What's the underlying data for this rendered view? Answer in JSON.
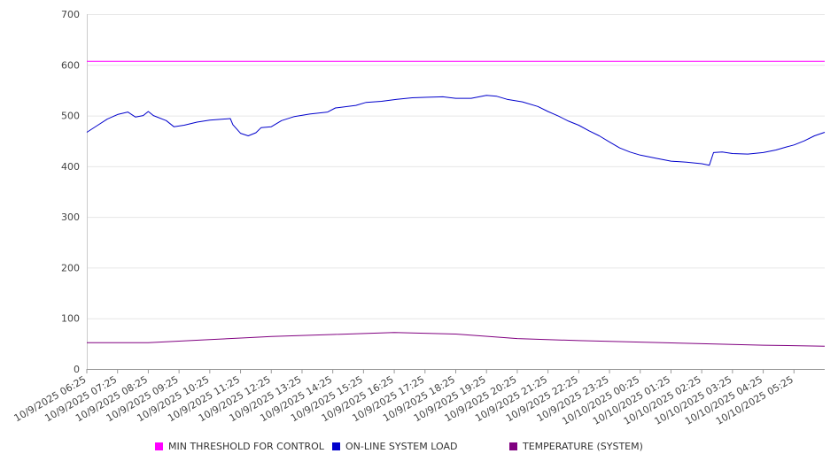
{
  "chart_data": {
    "type": "line",
    "ylim": [
      0,
      700
    ],
    "yticks": [
      "0",
      "100",
      "200",
      "300",
      "400",
      "500",
      "600",
      "700"
    ],
    "xticks": [
      "10/9/2025 06:25",
      "10/9/2025 07:25",
      "10/9/2025 08:25",
      "10/9/2025 09:25",
      "10/9/2025 10:25",
      "10/9/2025 11:25",
      "10/9/2025 12:25",
      "10/9/2025 13:25",
      "10/9/2025 14:25",
      "10/9/2025 15:25",
      "10/9/2025 16:25",
      "10/9/2025 17:25",
      "10/9/2025 18:25",
      "10/9/2025 19:25",
      "10/9/2025 20:25",
      "10/9/2025 21:25",
      "10/9/2025 22:25",
      "10/9/2025 23:25",
      "10/10/2025 00:25",
      "10/10/2025 01:25",
      "10/10/2025 02:25",
      "10/10/2025 03:25",
      "10/10/2025 04:25",
      "10/10/2025 05:25"
    ],
    "x_start": "10/9/2025 06:25",
    "x_end": "10/10/2025 06:25",
    "grid": true,
    "legend": "bottom",
    "series": [
      {
        "name": "MIN THRESHOLD FOR CONTROL",
        "color": "#ff00ff",
        "points": [
          [
            "10/9/2025 06:25",
            607
          ],
          [
            "10/10/2025 06:25",
            607
          ]
        ]
      },
      {
        "name": "ON-LINE SYSTEM LOAD",
        "color": "#0000cc",
        "points": [
          [
            "10/9/2025 06:25",
            467
          ],
          [
            "10/9/2025 06:45",
            480
          ],
          [
            "10/9/2025 07:05",
            493
          ],
          [
            "10/9/2025 07:25",
            502
          ],
          [
            "10/9/2025 07:45",
            507
          ],
          [
            "10/9/2025 08:00",
            497
          ],
          [
            "10/9/2025 08:15",
            500
          ],
          [
            "10/9/2025 08:25",
            508
          ],
          [
            "10/9/2025 08:35",
            500
          ],
          [
            "10/9/2025 09:00",
            490
          ],
          [
            "10/9/2025 09:15",
            478
          ],
          [
            "10/9/2025 09:35",
            481
          ],
          [
            "10/9/2025 10:00",
            487
          ],
          [
            "10/9/2025 10:25",
            491
          ],
          [
            "10/9/2025 11:05",
            494
          ],
          [
            "10/9/2025 11:10",
            482
          ],
          [
            "10/9/2025 11:25",
            465
          ],
          [
            "10/9/2025 11:40",
            460
          ],
          [
            "10/9/2025 11:55",
            466
          ],
          [
            "10/9/2025 12:05",
            476
          ],
          [
            "10/9/2025 12:25",
            478
          ],
          [
            "10/9/2025 12:45",
            490
          ],
          [
            "10/9/2025 13:10",
            498
          ],
          [
            "10/9/2025 13:40",
            503
          ],
          [
            "10/9/2025 14:15",
            507
          ],
          [
            "10/9/2025 14:30",
            515
          ],
          [
            "10/9/2025 15:10",
            520
          ],
          [
            "10/9/2025 15:30",
            526
          ],
          [
            "10/9/2025 16:00",
            528
          ],
          [
            "10/9/2025 16:30",
            532
          ],
          [
            "10/9/2025 17:00",
            535
          ],
          [
            "10/9/2025 17:30",
            536
          ],
          [
            "10/9/2025 18:00",
            537
          ],
          [
            "10/9/2025 18:25",
            534
          ],
          [
            "10/9/2025 18:55",
            534
          ],
          [
            "10/9/2025 19:25",
            540
          ],
          [
            "10/9/2025 19:45",
            538
          ],
          [
            "10/9/2025 20:05",
            532
          ],
          [
            "10/9/2025 20:35",
            527
          ],
          [
            "10/9/2025 21:05",
            518
          ],
          [
            "10/9/2025 21:25",
            508
          ],
          [
            "10/9/2025 21:45",
            499
          ],
          [
            "10/9/2025 22:05",
            489
          ],
          [
            "10/9/2025 22:25",
            481
          ],
          [
            "10/9/2025 22:45",
            470
          ],
          [
            "10/9/2025 23:05",
            460
          ],
          [
            "10/9/2025 23:25",
            448
          ],
          [
            "10/9/2025 23:45",
            436
          ],
          [
            "10/10/2025 00:05",
            428
          ],
          [
            "10/10/2025 00:25",
            422
          ],
          [
            "10/10/2025 00:55",
            416
          ],
          [
            "10/10/2025 01:25",
            410
          ],
          [
            "10/10/2025 01:55",
            408
          ],
          [
            "10/10/2025 02:25",
            405
          ],
          [
            "10/10/2025 02:40",
            402
          ],
          [
            "10/10/2025 02:48",
            427
          ],
          [
            "10/10/2025 03:05",
            428
          ],
          [
            "10/10/2025 03:25",
            425
          ],
          [
            "10/10/2025 03:55",
            424
          ],
          [
            "10/10/2025 04:25",
            427
          ],
          [
            "10/10/2025 04:50",
            432
          ],
          [
            "10/10/2025 05:10",
            438
          ],
          [
            "10/10/2025 05:25",
            442
          ],
          [
            "10/10/2025 05:45",
            450
          ],
          [
            "10/10/2025 06:05",
            460
          ],
          [
            "10/10/2025 06:25",
            467
          ]
        ]
      },
      {
        "name": "TEMPERATURE (SYSTEM)",
        "color": "#800080",
        "points": [
          [
            "10/9/2025 06:25",
            52
          ],
          [
            "10/9/2025 08:25",
            52
          ],
          [
            "10/9/2025 10:25",
            58
          ],
          [
            "10/9/2025 12:25",
            64
          ],
          [
            "10/9/2025 14:25",
            68
          ],
          [
            "10/9/2025 16:25",
            72
          ],
          [
            "10/9/2025 18:25",
            69
          ],
          [
            "10/9/2025 20:25",
            60
          ],
          [
            "10/9/2025 22:25",
            56
          ],
          [
            "10/10/2025 00:25",
            53
          ],
          [
            "10/10/2025 02:25",
            50
          ],
          [
            "10/10/2025 04:25",
            47
          ],
          [
            "10/10/2025 06:25",
            45
          ]
        ]
      }
    ]
  }
}
